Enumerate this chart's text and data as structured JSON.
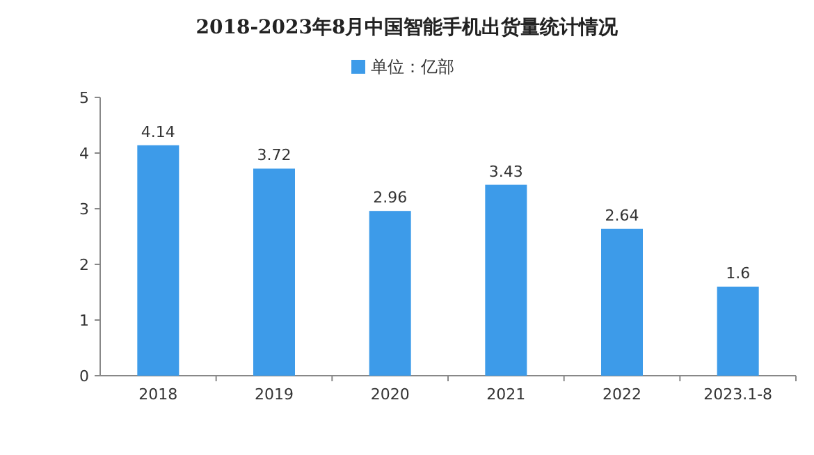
{
  "chart_data": {
    "type": "bar",
    "title": "2018-2023年8月中国智能手机出货量统计情况",
    "categories": [
      "2018",
      "2019",
      "2020",
      "2021",
      "2022",
      "2023.1-8"
    ],
    "series": [
      {
        "name": "单位：亿部",
        "color": "#3d9be9",
        "values": [
          4.14,
          3.72,
          2.96,
          3.43,
          2.64,
          1.6
        ]
      }
    ],
    "ylim": [
      0,
      5
    ],
    "yticks": [
      0,
      1,
      2,
      3,
      4,
      5
    ],
    "data_labels": true,
    "legend": "top"
  }
}
